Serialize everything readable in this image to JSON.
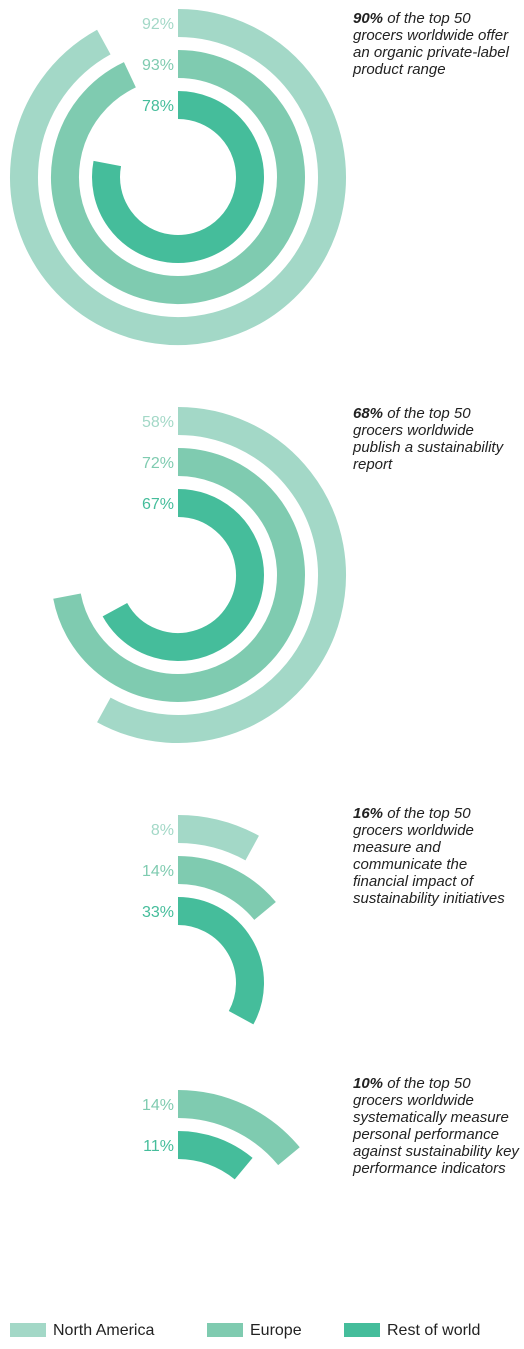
{
  "colors": {
    "north_america": "#a3d8c7",
    "europe": "#7fcbb0",
    "rest_of_world": "#45bd9b",
    "text": "#222222"
  },
  "legend": {
    "north_america": "North America",
    "europe": "Europe",
    "rest_of_world": "Rest of world"
  },
  "captions": [
    {
      "highlight": "90%",
      "text": " of the top 50 grocers worldwide offer an organic private-label product range"
    },
    {
      "highlight": "68%",
      "text": " of the top 50 grocers worldwide publish a sustainability report"
    },
    {
      "highlight": "16%",
      "text": " of the top 50 grocers worldwide measure and communicate the financial impact of sustainability initiatives"
    },
    {
      "highlight": "10%",
      "text": " of the top 50 grocers worldwide systematically measure personal performance against sustainability key performance indicators"
    }
  ],
  "chart_data": [
    {
      "type": "radial-bar",
      "caption_value": 90,
      "series": [
        {
          "name": "North America",
          "value": 92,
          "label": "92%"
        },
        {
          "name": "Europe",
          "value": 93,
          "label": "93%"
        },
        {
          "name": "Rest of world",
          "value": 78,
          "label": "78%"
        }
      ]
    },
    {
      "type": "radial-bar",
      "caption_value": 68,
      "series": [
        {
          "name": "North America",
          "value": 58,
          "label": "58%"
        },
        {
          "name": "Europe",
          "value": 72,
          "label": "72%"
        },
        {
          "name": "Rest of world",
          "value": 67,
          "label": "67%"
        }
      ]
    },
    {
      "type": "radial-bar",
      "caption_value": 16,
      "series": [
        {
          "name": "North America",
          "value": 8,
          "label": "8%"
        },
        {
          "name": "Europe",
          "value": 14,
          "label": "14%"
        },
        {
          "name": "Rest of world",
          "value": 33,
          "label": "33%"
        }
      ]
    },
    {
      "type": "radial-bar",
      "caption_value": 10,
      "series": [
        {
          "name": "Europe",
          "value": 14,
          "label": "14%"
        },
        {
          "name": "Rest of world",
          "value": 11,
          "label": "11%"
        }
      ]
    }
  ]
}
